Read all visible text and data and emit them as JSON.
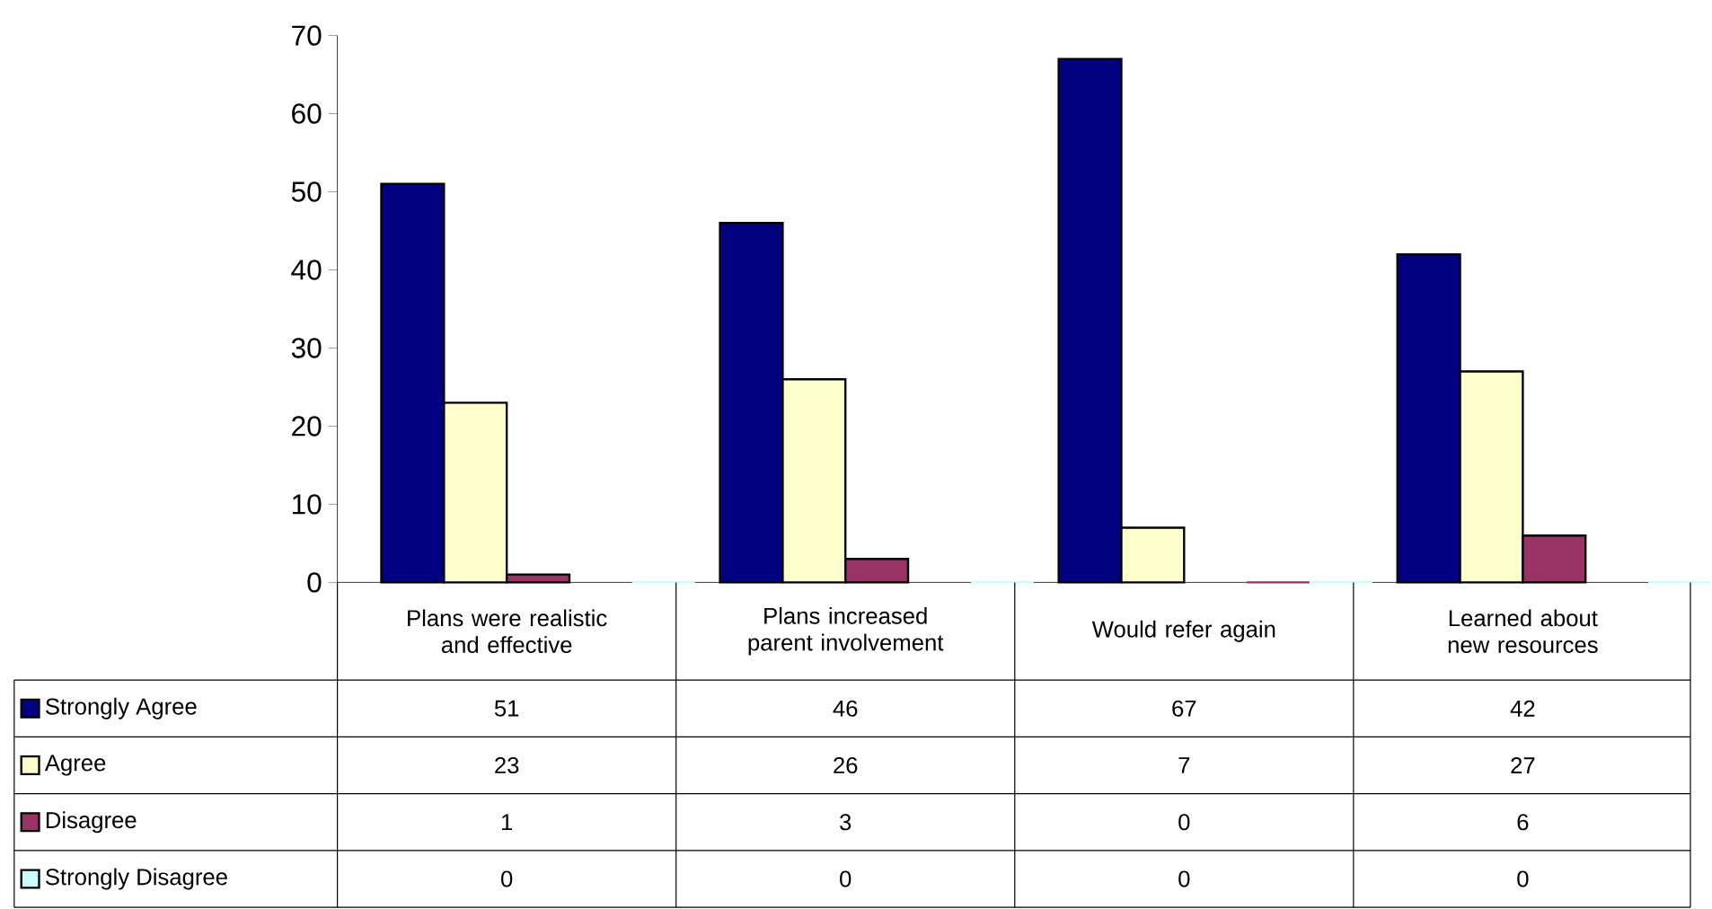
{
  "chart_data": {
    "type": "bar",
    "categories": [
      "Plans were realistic and effective",
      "Plans increased parent involvement",
      "Would refer again",
      "Learned about new resources"
    ],
    "series": [
      {
        "name": "Strongly Agree",
        "color": "#000080",
        "values": [
          51,
          46,
          67,
          42
        ]
      },
      {
        "name": "Agree",
        "color": "#ffffcc",
        "values": [
          23,
          26,
          7,
          27
        ]
      },
      {
        "name": "Disagree",
        "color": "#993366",
        "values": [
          1,
          3,
          0,
          6
        ]
      },
      {
        "name": "Strongly Disagree",
        "color": "#ccffff",
        "values": [
          0,
          0,
          0,
          0
        ]
      }
    ],
    "ylim": [
      0,
      70
    ],
    "yticks": [
      0,
      10,
      20,
      30,
      40,
      50,
      60,
      70
    ],
    "data_labels": true,
    "legend": "bottom left"
  }
}
